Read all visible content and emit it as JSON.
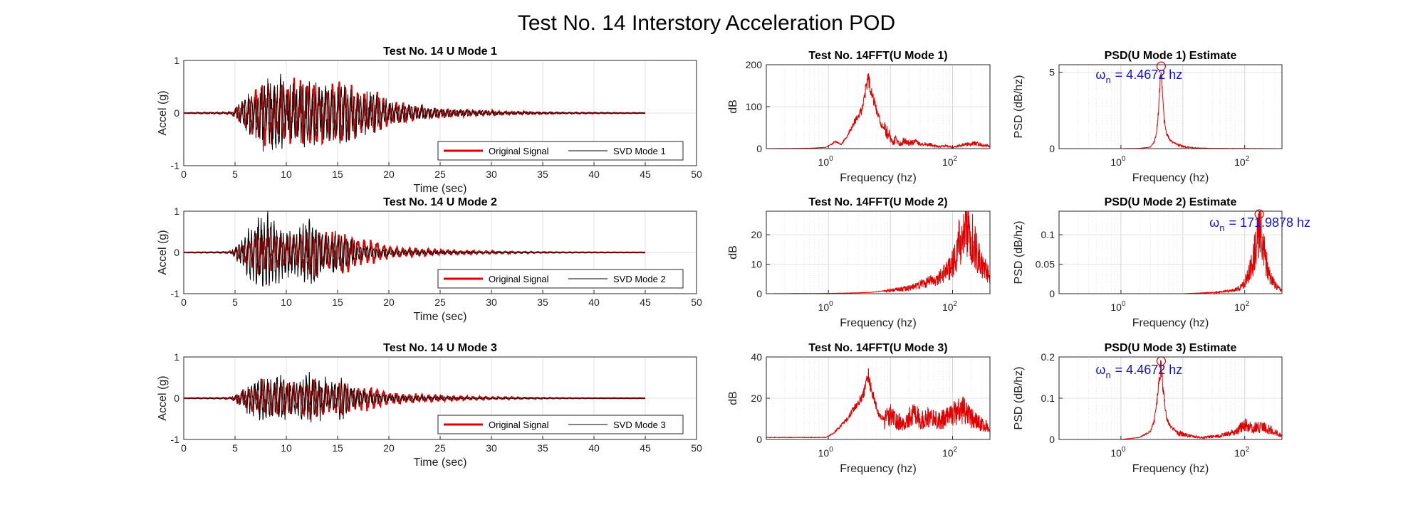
{
  "figure": {
    "title": "Test No. 14 Interstory Acceleration POD"
  },
  "chart_data": [
    {
      "type": "line",
      "col": 0,
      "row": 0,
      "title": "Test No. 14 U Mode 1",
      "xlabel": "Time (sec)",
      "ylabel": "Accel (g)",
      "xlim": [
        0,
        50
      ],
      "ylim": [
        -1,
        1
      ],
      "xticks": [
        0,
        5,
        10,
        15,
        20,
        25,
        30,
        35,
        40,
        45,
        50
      ],
      "yticks": [
        -1,
        0,
        1
      ],
      "grid": true,
      "legend_placement": "bottom-right",
      "time_range": [
        0,
        45
      ],
      "series": [
        {
          "name": "Original Signal",
          "color": "#e00000",
          "envelope": [
            0.0,
            0.01,
            0.01,
            0.02,
            0.32,
            0.6,
            0.58,
            0.52,
            0.6,
            0.5,
            0.55,
            0.35,
            0.38,
            0.2,
            0.15,
            0.12,
            0.08,
            0.06,
            0.05,
            0.04,
            0.03,
            0.025,
            0.02,
            0.015,
            0.01,
            0.01,
            0.008,
            0.006,
            0.005,
            0.004
          ]
        },
        {
          "name": "SVD Mode 1",
          "color": "#000000",
          "envelope": [
            0.0,
            0.01,
            0.01,
            0.02,
            0.35,
            0.7,
            0.68,
            0.55,
            0.62,
            0.52,
            0.58,
            0.36,
            0.38,
            0.2,
            0.15,
            0.12,
            0.08,
            0.06,
            0.05,
            0.04,
            0.03,
            0.025,
            0.02,
            0.015,
            0.01,
            0.01,
            0.008,
            0.006,
            0.005,
            0.004
          ]
        }
      ]
    },
    {
      "type": "line",
      "col": 0,
      "row": 1,
      "title": "Test No. 14 U Mode 2",
      "xlabel": "Time (sec)",
      "ylabel": "Accel (g)",
      "xlim": [
        0,
        50
      ],
      "ylim": [
        -1,
        1
      ],
      "xticks": [
        0,
        5,
        10,
        15,
        20,
        25,
        30,
        35,
        40,
        45,
        50
      ],
      "yticks": [
        -1,
        0,
        1
      ],
      "grid": true,
      "legend_placement": "bottom-right",
      "time_range": [
        0,
        45
      ],
      "series": [
        {
          "name": "Original Signal",
          "color": "#e00000",
          "envelope": [
            0.0,
            0.01,
            0.01,
            0.02,
            0.3,
            0.5,
            0.45,
            0.4,
            0.5,
            0.4,
            0.45,
            0.28,
            0.28,
            0.15,
            0.1,
            0.08,
            0.06,
            0.05,
            0.04,
            0.03,
            0.025,
            0.02,
            0.015,
            0.01,
            0.008,
            0.006,
            0.005,
            0.004,
            0.003,
            0.003
          ]
        },
        {
          "name": "SVD Mode 2",
          "color": "#000000",
          "envelope": [
            0.0,
            0.01,
            0.01,
            0.03,
            0.55,
            0.95,
            0.7,
            0.5,
            0.85,
            0.45,
            0.5,
            0.2,
            0.12,
            0.08,
            0.06,
            0.05,
            0.04,
            0.03,
            0.02,
            0.015,
            0.012,
            0.01,
            0.008,
            0.006,
            0.005,
            0.004,
            0.003,
            0.003,
            0.002,
            0.002
          ]
        }
      ]
    },
    {
      "type": "line",
      "col": 0,
      "row": 2,
      "title": "Test No. 14 U Mode 3",
      "xlabel": "Time (sec)",
      "ylabel": "Accel (g)",
      "xlim": [
        0,
        50
      ],
      "ylim": [
        -1,
        1
      ],
      "xticks": [
        0,
        5,
        10,
        15,
        20,
        25,
        30,
        35,
        40,
        45,
        50
      ],
      "yticks": [
        -1,
        0,
        1
      ],
      "grid": true,
      "legend_placement": "bottom-right",
      "time_range": [
        0,
        45
      ],
      "series": [
        {
          "name": "Original Signal",
          "color": "#e00000",
          "envelope": [
            0.0,
            0.01,
            0.01,
            0.02,
            0.28,
            0.42,
            0.4,
            0.36,
            0.45,
            0.38,
            0.4,
            0.25,
            0.26,
            0.15,
            0.1,
            0.09,
            0.07,
            0.05,
            0.04,
            0.03,
            0.025,
            0.02,
            0.015,
            0.01,
            0.008,
            0.006,
            0.005,
            0.004,
            0.003,
            0.003
          ]
        },
        {
          "name": "SVD Mode 3",
          "color": "#000000",
          "envelope": [
            0.0,
            0.01,
            0.01,
            0.02,
            0.3,
            0.55,
            0.55,
            0.4,
            0.65,
            0.42,
            0.45,
            0.2,
            0.14,
            0.08,
            0.06,
            0.05,
            0.04,
            0.03,
            0.02,
            0.015,
            0.012,
            0.01,
            0.008,
            0.006,
            0.005,
            0.004,
            0.003,
            0.003,
            0.002,
            0.002
          ]
        }
      ]
    },
    {
      "type": "line",
      "xscale": "log",
      "col": 1,
      "row": 0,
      "title": "Test No. 14FFT(U Mode 1)",
      "xlabel": "Frequency (hz)",
      "ylabel": "dB",
      "xlim": [
        0.1,
        400
      ],
      "ylim": [
        0,
        200
      ],
      "yticks": [
        0,
        100,
        200
      ],
      "grid": true,
      "series": [
        {
          "color": "#e00000",
          "points": [
            [
              0.1,
              0
            ],
            [
              0.5,
              1
            ],
            [
              0.9,
              3
            ],
            [
              1.1,
              10
            ],
            [
              1.3,
              18
            ],
            [
              1.6,
              10
            ],
            [
              2.0,
              30
            ],
            [
              2.5,
              60
            ],
            [
              3.0,
              80
            ],
            [
              3.5,
              95
            ],
            [
              4.0,
              145
            ],
            [
              4.4,
              170
            ],
            [
              4.8,
              150
            ],
            [
              5.3,
              120
            ],
            [
              6.0,
              95
            ],
            [
              7.0,
              60
            ],
            [
              8.0,
              50
            ],
            [
              9.5,
              40
            ],
            [
              11,
              15
            ],
            [
              12,
              25
            ],
            [
              14,
              12
            ],
            [
              16,
              20
            ],
            [
              20,
              15
            ],
            [
              25,
              18
            ],
            [
              30,
              10
            ],
            [
              40,
              12
            ],
            [
              60,
              5
            ],
            [
              80,
              8
            ],
            [
              100,
              3
            ],
            [
              150,
              10
            ],
            [
              200,
              15
            ],
            [
              300,
              10
            ],
            [
              400,
              5
            ]
          ]
        }
      ]
    },
    {
      "type": "line",
      "xscale": "log",
      "col": 1,
      "row": 1,
      "title": "Test No. 14FFT(U Mode 2)",
      "xlabel": "Frequency (hz)",
      "ylabel": "dB",
      "xlim": [
        0.1,
        400
      ],
      "ylim": [
        0,
        28
      ],
      "yticks": [
        0,
        10,
        20
      ],
      "grid": true,
      "series": [
        {
          "color": "#e00000",
          "points": [
            [
              0.1,
              0
            ],
            [
              1,
              0.1
            ],
            [
              3,
              0.3
            ],
            [
              5,
              0.5
            ],
            [
              8,
              1
            ],
            [
              12,
              1.5
            ],
            [
              18,
              2
            ],
            [
              25,
              3
            ],
            [
              35,
              4
            ],
            [
              50,
              5
            ],
            [
              70,
              7
            ],
            [
              90,
              10
            ],
            [
              110,
              14
            ],
            [
              130,
              20
            ],
            [
              150,
              24
            ],
            [
              170,
              27
            ],
            [
              200,
              22
            ],
            [
              250,
              15
            ],
            [
              320,
              10
            ],
            [
              400,
              6
            ]
          ]
        }
      ]
    },
    {
      "type": "line",
      "xscale": "log",
      "col": 1,
      "row": 2,
      "title": "Test No. 14FFT(U Mode 3)",
      "xlabel": "Frequency (hz)",
      "ylabel": "dB",
      "xlim": [
        0.1,
        400
      ],
      "ylim": [
        0,
        40
      ],
      "yticks": [
        0,
        20,
        40
      ],
      "grid": true,
      "series": [
        {
          "color": "#e00000",
          "points": [
            [
              0.1,
              1
            ],
            [
              0.5,
              1
            ],
            [
              0.9,
              1
            ],
            [
              1.2,
              3
            ],
            [
              1.5,
              6
            ],
            [
              2.0,
              10
            ],
            [
              2.5,
              15
            ],
            [
              3.0,
              18
            ],
            [
              3.6,
              22
            ],
            [
              4.0,
              28
            ],
            [
              4.4,
              32
            ],
            [
              4.8,
              26
            ],
            [
              5.5,
              20
            ],
            [
              6.5,
              12
            ],
            [
              8,
              10
            ],
            [
              10,
              14
            ],
            [
              13,
              10
            ],
            [
              16,
              8
            ],
            [
              20,
              12
            ],
            [
              25,
              14
            ],
            [
              30,
              10
            ],
            [
              40,
              12
            ],
            [
              60,
              10
            ],
            [
              80,
              12
            ],
            [
              100,
              14
            ],
            [
              150,
              16
            ],
            [
              200,
              12
            ],
            [
              300,
              8
            ],
            [
              400,
              6
            ]
          ]
        }
      ]
    },
    {
      "type": "line",
      "xscale": "log",
      "col": 2,
      "row": 0,
      "title": "PSD(U Mode 1) Estimate",
      "xlabel": "Frequency (hz)",
      "ylabel": "PSD (dB/hz)",
      "xlim": [
        0.1,
        400
      ],
      "ylim": [
        0,
        5.5
      ],
      "yticks": [
        0,
        5
      ],
      "grid": true,
      "peak": {
        "x": 4.4672,
        "y": 5.4,
        "label": "= 4.4672 hz"
      },
      "series": [
        {
          "color": "#e00000",
          "points": [
            [
              0.1,
              0
            ],
            [
              1,
              0
            ],
            [
              2,
              0.02
            ],
            [
              3,
              0.1
            ],
            [
              3.5,
              0.5
            ],
            [
              3.8,
              1.2
            ],
            [
              4.1,
              3.0
            ],
            [
              4.3,
              4.5
            ],
            [
              4.4672,
              5.4
            ],
            [
              4.7,
              3.5
            ],
            [
              5.0,
              2.0
            ],
            [
              5.5,
              1.0
            ],
            [
              6.2,
              0.6
            ],
            [
              7,
              0.4
            ],
            [
              8,
              0.3
            ],
            [
              10,
              0.15
            ],
            [
              15,
              0.05
            ],
            [
              30,
              0.02
            ],
            [
              100,
              0.01
            ],
            [
              400,
              0
            ]
          ]
        }
      ]
    },
    {
      "type": "line",
      "xscale": "log",
      "col": 2,
      "row": 1,
      "title": "PSD(U Mode 2) Estimate",
      "xlabel": "Frequency (hz)",
      "ylabel": "PSD (dB/hz)",
      "xlim": [
        0.1,
        400
      ],
      "ylim": [
        0,
        0.14
      ],
      "yticks": [
        0,
        0.05,
        0.1
      ],
      "grid": true,
      "peak": {
        "x": 171.9878,
        "y": 0.135,
        "label": "= 171.9878 hz"
      },
      "series": [
        {
          "color": "#e00000",
          "points": [
            [
              0.1,
              0
            ],
            [
              10,
              0
            ],
            [
              30,
              0.002
            ],
            [
              60,
              0.005
            ],
            [
              80,
              0.01
            ],
            [
              100,
              0.02
            ],
            [
              120,
              0.04
            ],
            [
              140,
              0.07
            ],
            [
              160,
              0.1
            ],
            [
              171.9878,
              0.135
            ],
            [
              190,
              0.1
            ],
            [
              220,
              0.06
            ],
            [
              260,
              0.03
            ],
            [
              320,
              0.015
            ],
            [
              400,
              0.005
            ]
          ]
        }
      ]
    },
    {
      "type": "line",
      "xscale": "log",
      "col": 2,
      "row": 2,
      "title": "PSD(U Mode 3) Estimate",
      "xlabel": "Frequency (hz)",
      "ylabel": "PSD (dB/hz)",
      "xlim": [
        0.1,
        400
      ],
      "ylim": [
        0,
        0.2
      ],
      "yticks": [
        0,
        0.1,
        0.2
      ],
      "grid": true,
      "peak": {
        "x": 4.4672,
        "y": 0.19,
        "label": "= 4.4672 hz"
      },
      "series": [
        {
          "color": "#e00000",
          "points": [
            [
              0.1,
              0
            ],
            [
              1,
              0
            ],
            [
              2,
              0.005
            ],
            [
              3,
              0.02
            ],
            [
              3.5,
              0.05
            ],
            [
              4.0,
              0.12
            ],
            [
              4.4672,
              0.19
            ],
            [
              4.8,
              0.12
            ],
            [
              5.5,
              0.05
            ],
            [
              6.5,
              0.03
            ],
            [
              8,
              0.02
            ],
            [
              12,
              0.01
            ],
            [
              20,
              0.005
            ],
            [
              40,
              0.01
            ],
            [
              70,
              0.02
            ],
            [
              100,
              0.04
            ],
            [
              130,
              0.03
            ],
            [
              200,
              0.035
            ],
            [
              300,
              0.02
            ],
            [
              400,
              0.01
            ]
          ]
        }
      ]
    }
  ]
}
